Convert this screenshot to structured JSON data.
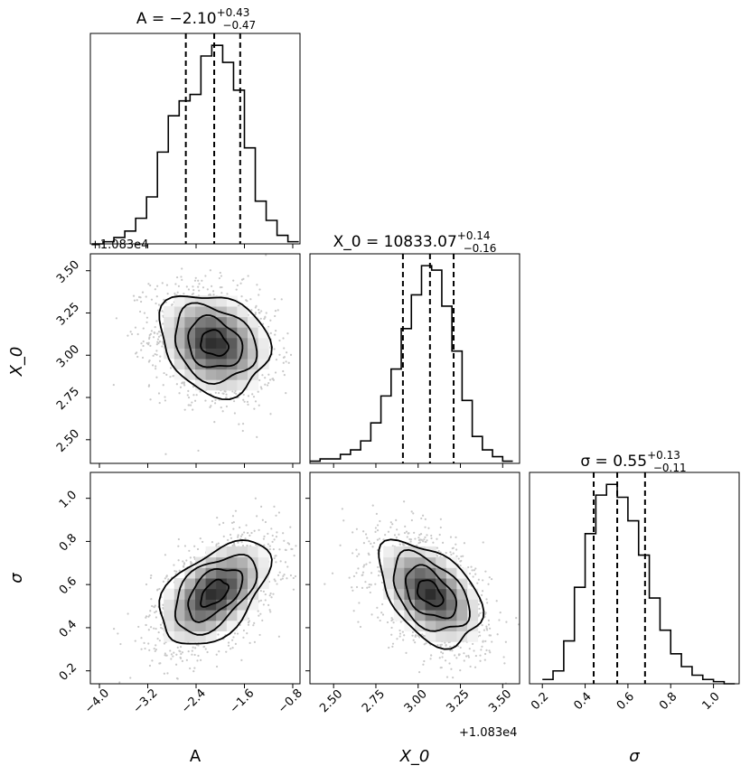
{
  "chart_data": [
    {
      "type": "histogram",
      "panel": "A",
      "title": {
        "main": "A = −2.10",
        "sup": "+0.43",
        "sub": "−0.47"
      },
      "quantiles": [
        -2.57,
        -2.1,
        -1.67
      ],
      "xlim": [
        -4.15,
        -0.68
      ],
      "bins_x": [
        -4.12,
        -3.94,
        -3.76,
        -3.58,
        -3.4,
        -3.22,
        -3.04,
        -2.86,
        -2.68,
        -2.5,
        -2.32,
        -2.14,
        -1.96,
        -1.78,
        -1.6,
        -1.42,
        -1.24,
        -1.06,
        -0.88,
        -0.7
      ],
      "counts": [
        0,
        1,
        3,
        6,
        12,
        22,
        43,
        60,
        67,
        70,
        88,
        93,
        85,
        72,
        45,
        20,
        11,
        4,
        1
      ]
    },
    {
      "type": "scatter-density",
      "panel": "A vs X_0",
      "xlim": [
        -4.15,
        -0.68
      ],
      "ylim": [
        2.36,
        3.6
      ],
      "yticks": [
        "2.50",
        "2.75",
        "3.00",
        "3.25",
        "3.50"
      ],
      "yoffset_label": "+1.083e4",
      "ylabel": "X_0",
      "mean": [
        -2.1,
        3.07
      ],
      "sigma": [
        0.45,
        0.15
      ],
      "correlation": -0.2
    },
    {
      "type": "histogram",
      "panel": "X_0",
      "title": {
        "main": "X_0 = 10833.07",
        "sup": "+0.14",
        "sub": "−0.16"
      },
      "quantiles": [
        2.91,
        3.07,
        3.21
      ],
      "xlim": [
        2.36,
        3.6
      ],
      "bins_x": [
        2.36,
        2.42,
        2.48,
        2.54,
        2.6,
        2.66,
        2.72,
        2.78,
        2.84,
        2.9,
        2.96,
        3.02,
        3.08,
        3.14,
        3.2,
        3.26,
        3.32,
        3.38,
        3.44,
        3.5,
        3.56
      ],
      "counts": [
        1,
        2,
        2,
        4,
        6,
        10,
        18,
        30,
        42,
        60,
        75,
        88,
        86,
        70,
        50,
        28,
        12,
        6,
        3,
        1
      ]
    },
    {
      "type": "scatter-density",
      "panel": "A vs sigma",
      "xlim": [
        -4.15,
        -0.68
      ],
      "ylim": [
        0.14,
        1.12
      ],
      "xticks": [
        "−4.0",
        "−3.2",
        "−2.4",
        "−1.6",
        "−0.8"
      ],
      "yticks": [
        "0.2",
        "0.4",
        "0.6",
        "0.8",
        "1.0"
      ],
      "xlabel": "A",
      "ylabel": "σ",
      "mean": [
        -2.1,
        0.56
      ],
      "sigma": [
        0.45,
        0.12
      ],
      "correlation": 0.5
    },
    {
      "type": "scatter-density",
      "panel": "X_0 vs sigma",
      "xlim": [
        2.36,
        3.6
      ],
      "ylim": [
        0.14,
        1.12
      ],
      "xticks": [
        "2.50",
        "2.75",
        "3.00",
        "3.25",
        "3.50"
      ],
      "xoffset_label": "+1.083e4",
      "xlabel": "X_0",
      "mean": [
        3.07,
        0.56
      ],
      "sigma": [
        0.15,
        0.12
      ],
      "correlation": -0.45
    },
    {
      "type": "histogram",
      "panel": "sigma",
      "title": {
        "main": "σ = 0.55",
        "sup": "+0.13",
        "sub": "−0.11"
      },
      "quantiles": [
        0.44,
        0.55,
        0.68
      ],
      "xlim": [
        0.14,
        1.12
      ],
      "xticks": [
        "0.2",
        "0.4",
        "0.6",
        "0.8",
        "1.0"
      ],
      "xlabel": "σ",
      "bins_x": [
        0.2,
        0.25,
        0.3,
        0.35,
        0.4,
        0.45,
        0.5,
        0.55,
        0.6,
        0.65,
        0.7,
        0.75,
        0.8,
        0.85,
        0.9,
        0.95,
        1.0,
        1.05,
        1.1
      ],
      "counts": [
        2,
        6,
        20,
        45,
        70,
        88,
        93,
        87,
        76,
        60,
        40,
        25,
        14,
        8,
        4,
        2,
        1,
        0
      ]
    }
  ],
  "colors": {
    "axis": "#000000",
    "points": "#c8c8c8",
    "density_dark": "#202020",
    "background": "#ffffff"
  }
}
